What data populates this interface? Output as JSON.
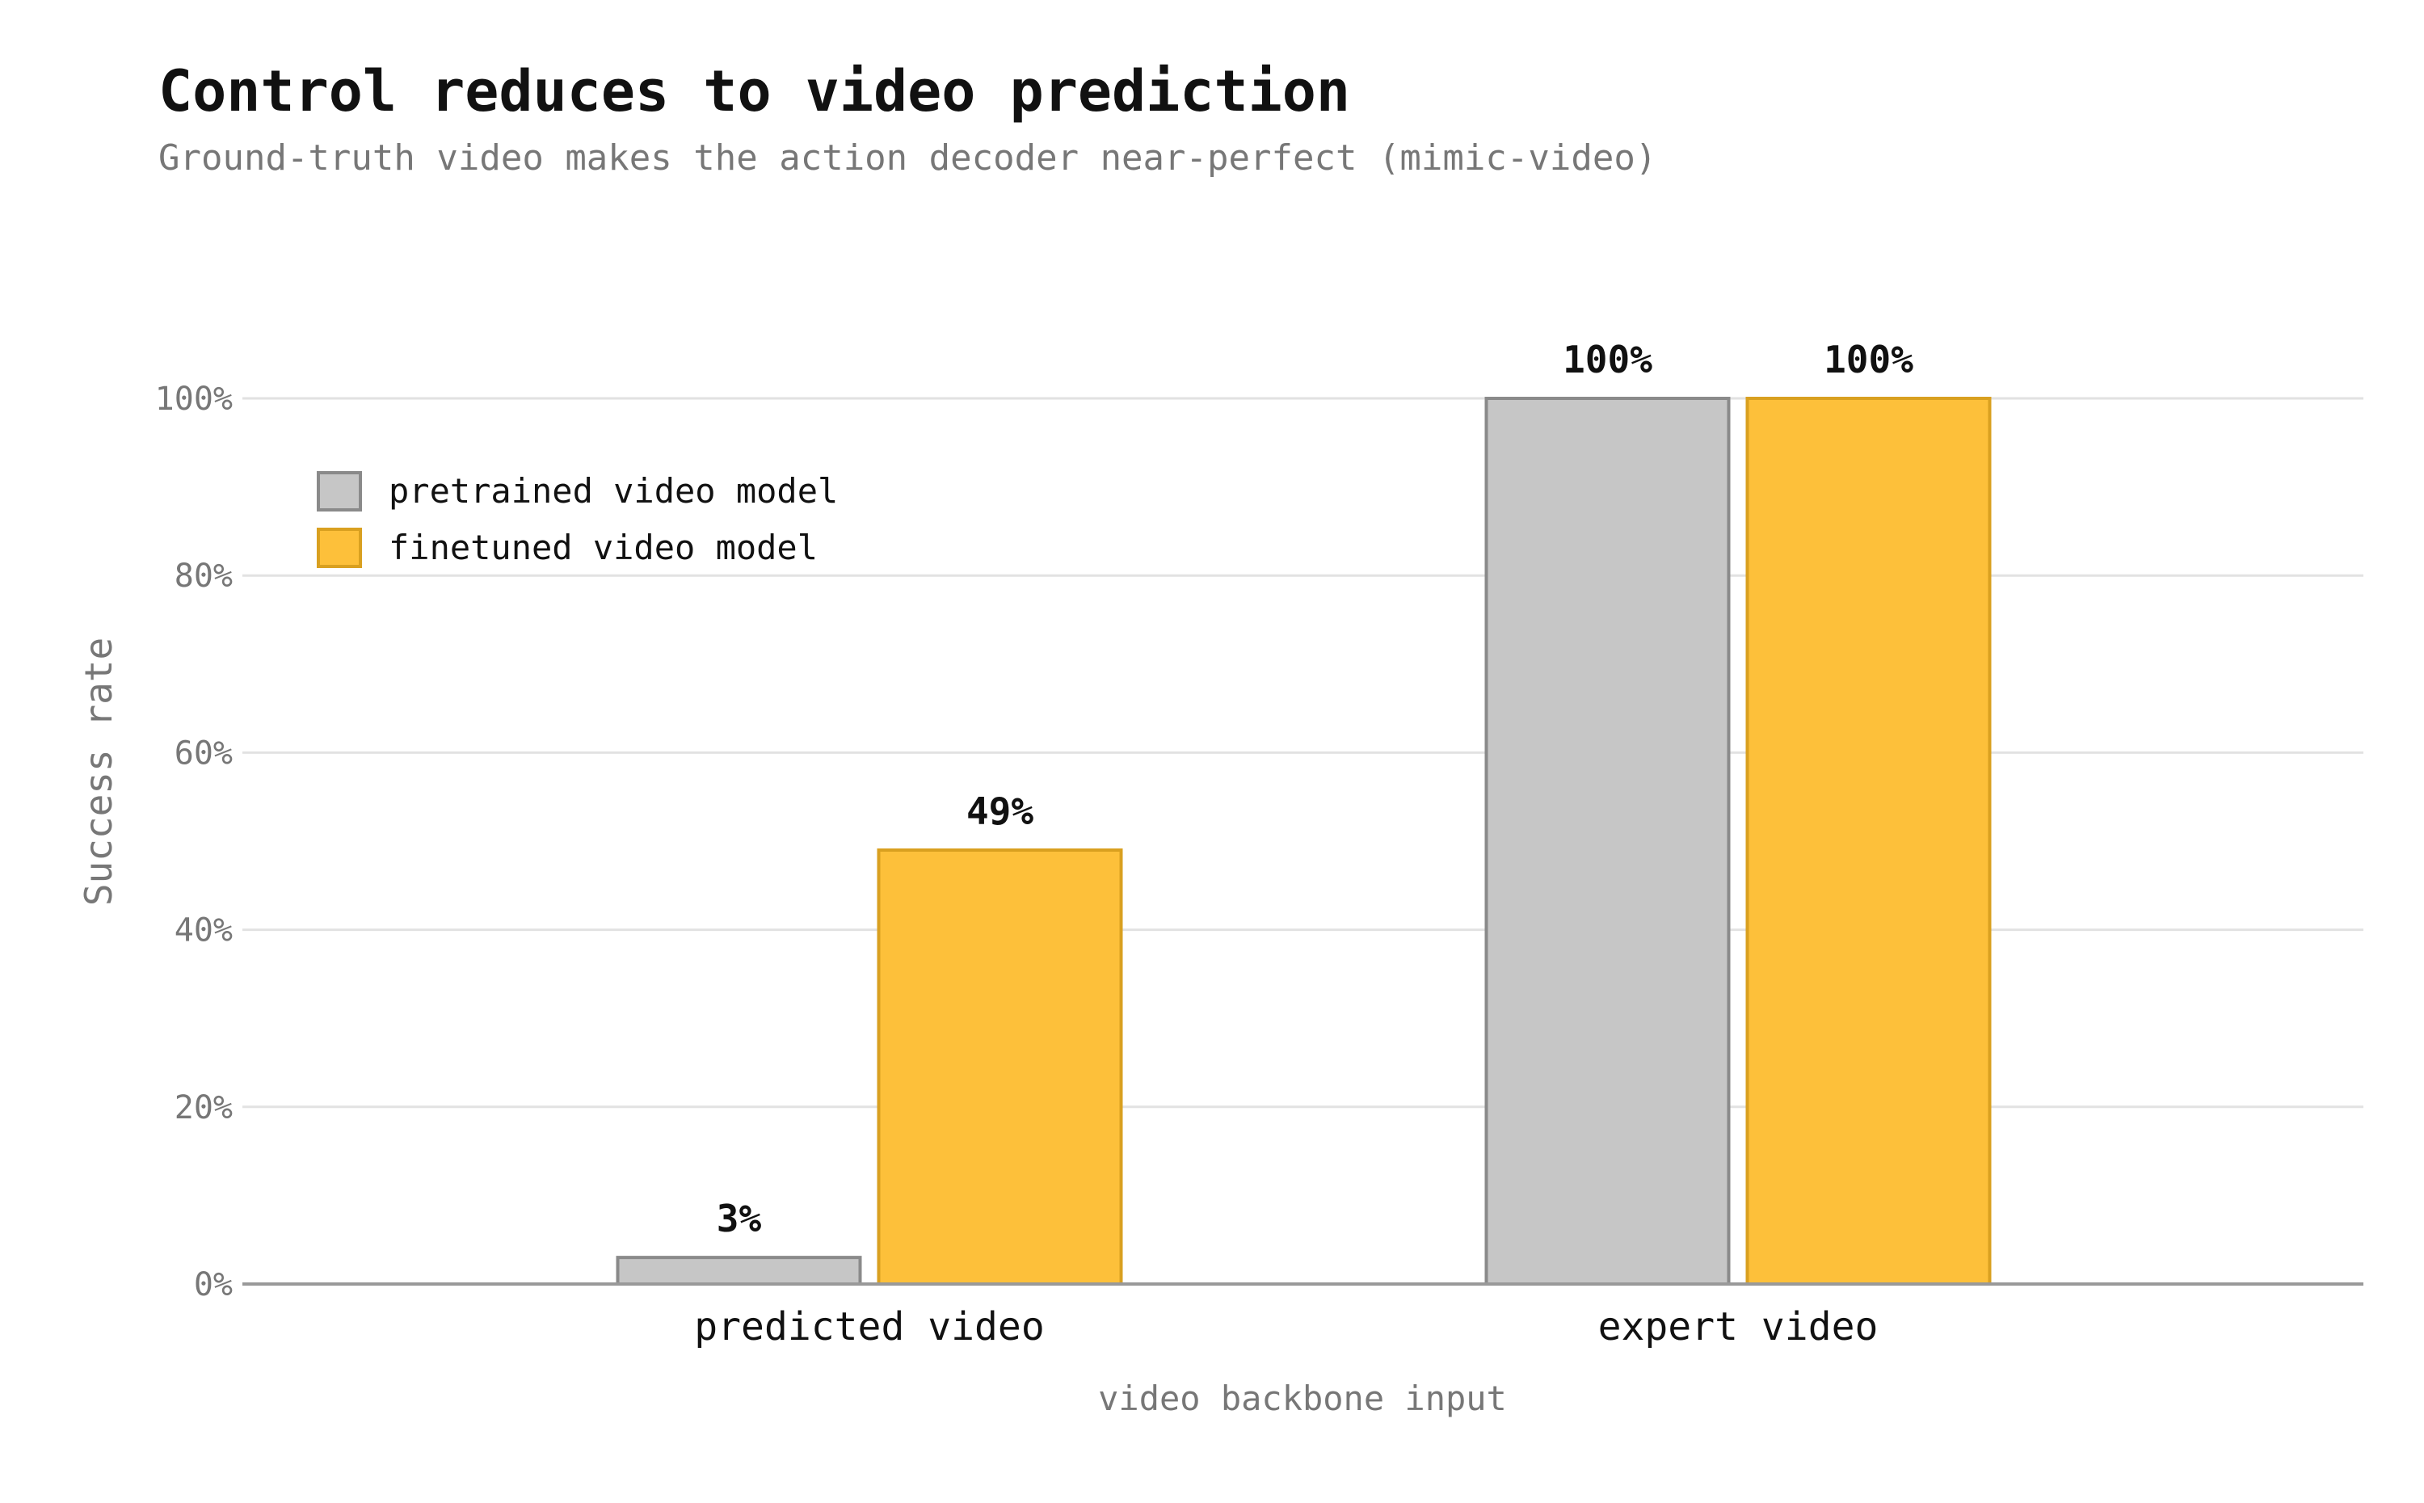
{
  "chart_data": {
    "type": "bar",
    "title": "Control reduces to video prediction",
    "subtitle": "Ground-truth video makes the action decoder near-perfect (mimic-video)",
    "xlabel": "video backbone input",
    "ylabel": "Success rate",
    "categories": [
      "predicted video",
      "expert video"
    ],
    "series": [
      {
        "name": "pretrained video model",
        "values": [
          3,
          100
        ],
        "labels": [
          "3%",
          "100%"
        ],
        "color": "#c6c6c6",
        "stroke": "#8a8a8a"
      },
      {
        "name": "finetuned video model",
        "values": [
          49,
          100
        ],
        "labels": [
          "49%",
          "100%"
        ],
        "color": "#fdc03a",
        "stroke": "#d9a020"
      }
    ],
    "ylim": [
      0,
      100
    ],
    "yticks": [
      0,
      20,
      40,
      60,
      80,
      100
    ],
    "ytick_labels": [
      "0%",
      "20%",
      "40%",
      "60%",
      "80%",
      "100%"
    ],
    "grid": "horizontal",
    "legend_position": "top-left"
  }
}
